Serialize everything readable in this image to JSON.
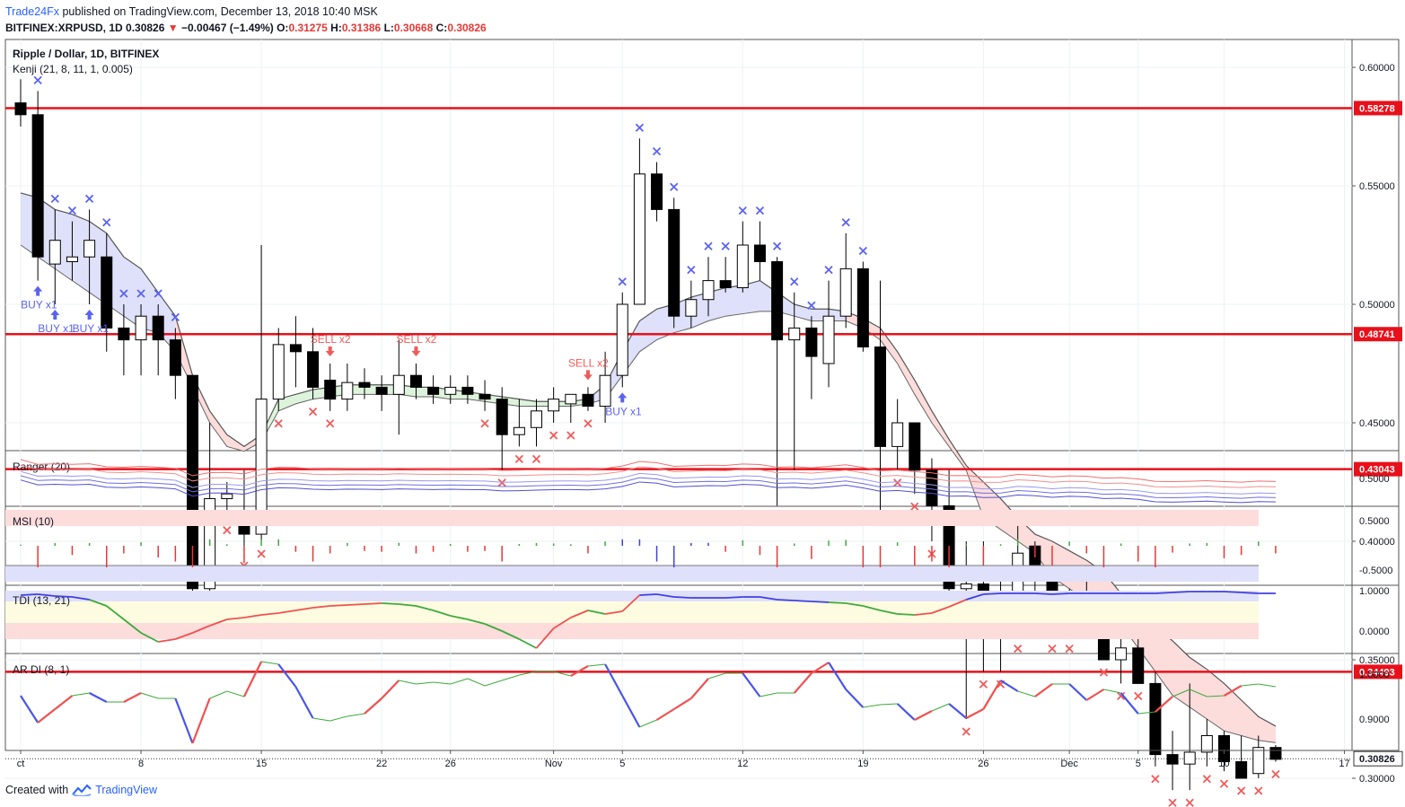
{
  "header": {
    "publisher": "Trade24Fx",
    "published_text": "published on TradingView.com, December 13, 2018 10:40 MSK",
    "symbol": "BITFINEX:XRPUSD, 1D",
    "last": "0.30826",
    "change": "−0.00467 (−1.49%)",
    "o_label": "O:",
    "o": "0.31275",
    "h_label": "H:",
    "h": "0.31386",
    "l_label": "L:",
    "l": "0.30668",
    "c_label": "C:",
    "c": "0.30826"
  },
  "footer": {
    "created_with": "Created with",
    "brand": "TradingView"
  },
  "colors": {
    "bull": "#ffffff",
    "bear": "#000000",
    "level": "#e8101a",
    "sell": "#f05a5a",
    "buy": "#5a63f0",
    "cloud_up": "#dfe0fa",
    "cloud_down": "#fddcdc",
    "cloud_green": "#ddf3dc"
  },
  "chart_data": [
    {
      "type": "candlestick",
      "title": "Ripple / Dollar, 1D, BITFINEX",
      "indicator_label": "Kenji (21, 8, 11, 1, 0.005)",
      "ylim": [
        0.27,
        0.62
      ],
      "yticks": [
        "0.60000",
        "0.55000",
        "0.50000",
        "0.45000",
        "0.40000",
        "0.35000",
        "0.30000"
      ],
      "x_labels": [
        {
          "i": 0,
          "t": "ct"
        },
        {
          "i": 7,
          "t": "8"
        },
        {
          "i": 14,
          "t": "15"
        },
        {
          "i": 21,
          "t": "22"
        },
        {
          "i": 25,
          "t": "26"
        },
        {
          "i": 31,
          "t": "Nov"
        },
        {
          "i": 35,
          "t": "5"
        },
        {
          "i": 42,
          "t": "12"
        },
        {
          "i": 49,
          "t": "19"
        },
        {
          "i": 56,
          "t": "26"
        },
        {
          "i": 61,
          "t": "Dec"
        },
        {
          "i": 65,
          "t": "5"
        },
        {
          "i": 70,
          "t": "10"
        },
        {
          "i": 77,
          "t": "17"
        }
      ],
      "levels": [
        "0.58278",
        "0.48741",
        "0.43043",
        "0.34493"
      ],
      "last_price": "0.30826",
      "ohlc": [
        [
          0.585,
          0.595,
          0.575,
          0.58
        ],
        [
          0.58,
          0.59,
          0.51,
          0.52
        ],
        [
          0.517,
          0.54,
          0.5,
          0.527
        ],
        [
          0.518,
          0.535,
          0.51,
          0.52
        ],
        [
          0.52,
          0.54,
          0.5,
          0.527
        ],
        [
          0.52,
          0.53,
          0.48,
          0.49
        ],
        [
          0.49,
          0.5,
          0.47,
          0.485
        ],
        [
          0.485,
          0.5,
          0.47,
          0.495
        ],
        [
          0.495,
          0.5,
          0.47,
          0.485
        ],
        [
          0.485,
          0.49,
          0.46,
          0.47
        ],
        [
          0.47,
          0.47,
          0.37,
          0.38
        ],
        [
          0.38,
          0.45,
          0.375,
          0.418
        ],
        [
          0.418,
          0.425,
          0.41,
          0.42
        ],
        [
          0.413,
          0.43,
          0.395,
          0.403
        ],
        [
          0.403,
          0.525,
          0.4,
          0.46
        ],
        [
          0.46,
          0.49,
          0.455,
          0.483
        ],
        [
          0.483,
          0.495,
          0.465,
          0.48
        ],
        [
          0.48,
          0.49,
          0.46,
          0.465
        ],
        [
          0.468,
          0.475,
          0.455,
          0.46
        ],
        [
          0.46,
          0.475,
          0.455,
          0.467
        ],
        [
          0.467,
          0.473,
          0.46,
          0.465
        ],
        [
          0.465,
          0.47,
          0.455,
          0.462
        ],
        [
          0.462,
          0.485,
          0.445,
          0.47
        ],
        [
          0.47,
          0.475,
          0.46,
          0.465
        ],
        [
          0.465,
          0.47,
          0.458,
          0.462
        ],
        [
          0.462,
          0.47,
          0.458,
          0.465
        ],
        [
          0.465,
          0.47,
          0.458,
          0.462
        ],
        [
          0.462,
          0.468,
          0.455,
          0.46
        ],
        [
          0.46,
          0.465,
          0.43,
          0.445
        ],
        [
          0.445,
          0.46,
          0.44,
          0.448
        ],
        [
          0.448,
          0.46,
          0.44,
          0.455
        ],
        [
          0.455,
          0.465,
          0.45,
          0.46
        ],
        [
          0.458,
          0.462,
          0.45,
          0.462
        ],
        [
          0.462,
          0.465,
          0.455,
          0.457
        ],
        [
          0.457,
          0.48,
          0.45,
          0.47
        ],
        [
          0.47,
          0.505,
          0.465,
          0.5
        ],
        [
          0.5,
          0.57,
          0.5,
          0.555
        ],
        [
          0.555,
          0.56,
          0.535,
          0.54
        ],
        [
          0.54,
          0.545,
          0.49,
          0.495
        ],
        [
          0.495,
          0.51,
          0.49,
          0.502
        ],
        [
          0.502,
          0.52,
          0.495,
          0.51
        ],
        [
          0.51,
          0.52,
          0.505,
          0.507
        ],
        [
          0.507,
          0.535,
          0.505,
          0.525
        ],
        [
          0.525,
          0.535,
          0.51,
          0.518
        ],
        [
          0.518,
          0.52,
          0.415,
          0.485
        ],
        [
          0.485,
          0.505,
          0.43,
          0.49
        ],
        [
          0.49,
          0.495,
          0.46,
          0.478
        ],
        [
          0.475,
          0.51,
          0.465,
          0.495
        ],
        [
          0.495,
          0.53,
          0.49,
          0.515
        ],
        [
          0.515,
          0.518,
          0.48,
          0.482
        ],
        [
          0.482,
          0.51,
          0.41,
          0.44
        ],
        [
          0.44,
          0.46,
          0.43,
          0.45
        ],
        [
          0.45,
          0.45,
          0.42,
          0.43
        ],
        [
          0.43,
          0.435,
          0.4,
          0.415
        ],
        [
          0.415,
          0.43,
          0.37,
          0.38
        ],
        [
          0.38,
          0.4,
          0.325,
          0.382
        ],
        [
          0.382,
          0.4,
          0.345,
          0.363
        ],
        [
          0.363,
          0.385,
          0.345,
          0.365
        ],
        [
          0.365,
          0.41,
          0.36,
          0.395
        ],
        [
          0.398,
          0.4,
          0.37,
          0.385
        ],
        [
          0.385,
          0.39,
          0.36,
          0.365
        ],
        [
          0.365,
          0.38,
          0.36,
          0.378
        ],
        [
          0.378,
          0.385,
          0.37,
          0.373
        ],
        [
          0.373,
          0.375,
          0.35,
          0.35
        ],
        [
          0.35,
          0.365,
          0.34,
          0.355
        ],
        [
          0.355,
          0.36,
          0.34,
          0.34
        ],
        [
          0.34,
          0.345,
          0.305,
          0.31
        ],
        [
          0.31,
          0.32,
          0.295,
          0.306
        ],
        [
          0.306,
          0.34,
          0.295,
          0.311
        ],
        [
          0.311,
          0.325,
          0.305,
          0.318
        ],
        [
          0.318,
          0.32,
          0.303,
          0.307
        ],
        [
          0.307,
          0.318,
          0.3,
          0.3
        ],
        [
          0.302,
          0.318,
          0.3,
          0.313
        ],
        [
          0.313,
          0.314,
          0.307,
          0.308
        ]
      ],
      "band_upper": [
        0.547,
        0.545,
        0.54,
        0.538,
        0.535,
        0.53,
        0.52,
        0.515,
        0.505,
        0.495,
        0.47,
        0.455,
        0.445,
        0.44,
        0.445,
        0.46,
        0.462,
        0.464,
        0.465,
        0.466,
        0.466,
        0.466,
        0.466,
        0.465,
        0.465,
        0.464,
        0.463,
        0.462,
        0.461,
        0.46,
        0.459,
        0.459,
        0.459,
        0.46,
        0.466,
        0.48,
        0.493,
        0.498,
        0.5,
        0.503,
        0.505,
        0.507,
        0.508,
        0.51,
        0.505,
        0.5,
        0.498,
        0.498,
        0.497,
        0.494,
        0.49,
        0.48,
        0.468,
        0.455,
        0.443,
        0.432,
        0.425,
        0.418,
        0.41,
        0.403,
        0.4,
        0.396,
        0.392,
        0.387,
        0.378,
        0.37,
        0.364,
        0.358,
        0.351,
        0.346,
        0.34,
        0.333,
        0.326,
        0.322
      ],
      "band_lower": [
        0.525,
        0.52,
        0.515,
        0.51,
        0.505,
        0.5,
        0.495,
        0.49,
        0.488,
        0.48,
        0.465,
        0.45,
        0.44,
        0.438,
        0.442,
        0.455,
        0.458,
        0.46,
        0.461,
        0.462,
        0.462,
        0.462,
        0.462,
        0.461,
        0.461,
        0.46,
        0.46,
        0.459,
        0.458,
        0.457,
        0.457,
        0.457,
        0.457,
        0.458,
        0.46,
        0.47,
        0.48,
        0.485,
        0.488,
        0.49,
        0.493,
        0.495,
        0.496,
        0.497,
        0.497,
        0.495,
        0.493,
        0.493,
        0.493,
        0.49,
        0.485,
        0.475,
        0.462,
        0.45,
        0.44,
        0.43,
        0.41,
        0.405,
        0.4,
        0.395,
        0.385,
        0.38,
        0.375,
        0.37,
        0.365,
        0.355,
        0.345,
        0.335,
        0.33,
        0.325,
        0.32,
        0.318,
        0.316,
        0.315
      ],
      "buy_marks": [
        {
          "i": 1,
          "kind": "x"
        },
        {
          "i": 2,
          "kind": "x"
        },
        {
          "i": 3,
          "kind": "x"
        },
        {
          "i": 4,
          "kind": "x"
        },
        {
          "i": 5,
          "kind": "x"
        },
        {
          "i": 6,
          "kind": "x"
        },
        {
          "i": 7,
          "kind": "x"
        },
        {
          "i": 8,
          "kind": "x"
        },
        {
          "i": 9,
          "kind": "x"
        },
        {
          "i": 35,
          "kind": "x"
        },
        {
          "i": 36,
          "kind": "x"
        },
        {
          "i": 37,
          "kind": "x"
        },
        {
          "i": 38,
          "kind": "x"
        },
        {
          "i": 39,
          "kind": "x"
        },
        {
          "i": 40,
          "kind": "x"
        },
        {
          "i": 41,
          "kind": "x"
        },
        {
          "i": 42,
          "kind": "x"
        },
        {
          "i": 43,
          "kind": "x"
        },
        {
          "i": 44,
          "kind": "x"
        },
        {
          "i": 45,
          "kind": "x"
        },
        {
          "i": 46,
          "kind": "x"
        },
        {
          "i": 47,
          "kind": "x"
        },
        {
          "i": 48,
          "kind": "x"
        },
        {
          "i": 49,
          "kind": "x"
        }
      ],
      "sell_marks": [
        10,
        11,
        12,
        13,
        14,
        15,
        17,
        18,
        27,
        28,
        29,
        30,
        31,
        32,
        33,
        51,
        52,
        53,
        54,
        55,
        56,
        57,
        58,
        59,
        60,
        61,
        62,
        63,
        64,
        65,
        66,
        67,
        68,
        69,
        70,
        71,
        72,
        73
      ],
      "signals": [
        {
          "i": 2,
          "side": "buy",
          "text": "BUY x1"
        },
        {
          "i": 1,
          "side": "buy",
          "text": "BUY x1"
        },
        {
          "i": 4,
          "side": "buy",
          "text": "BUY x1"
        },
        {
          "i": 18,
          "side": "sell",
          "text": "SELL x2"
        },
        {
          "i": 23,
          "side": "sell",
          "text": "SELL x2"
        },
        {
          "i": 33,
          "side": "sell",
          "text": "SELL x2"
        },
        {
          "i": 35,
          "side": "buy",
          "text": "BUY x1"
        }
      ]
    },
    {
      "type": "line",
      "title": "Ranger (20)",
      "yticks": [
        "0.5000"
      ]
    },
    {
      "type": "bar",
      "title": "MSI (10)",
      "yticks": [
        "0.5000",
        "-0.5000"
      ]
    },
    {
      "type": "line",
      "title": "TDI (13, 21)",
      "yticks": [
        "1.0000",
        "0.0000"
      ]
    },
    {
      "type": "line",
      "title": "AR DI (8, 1)",
      "yticks": [
        "1.0000",
        "0.9000"
      ]
    }
  ]
}
